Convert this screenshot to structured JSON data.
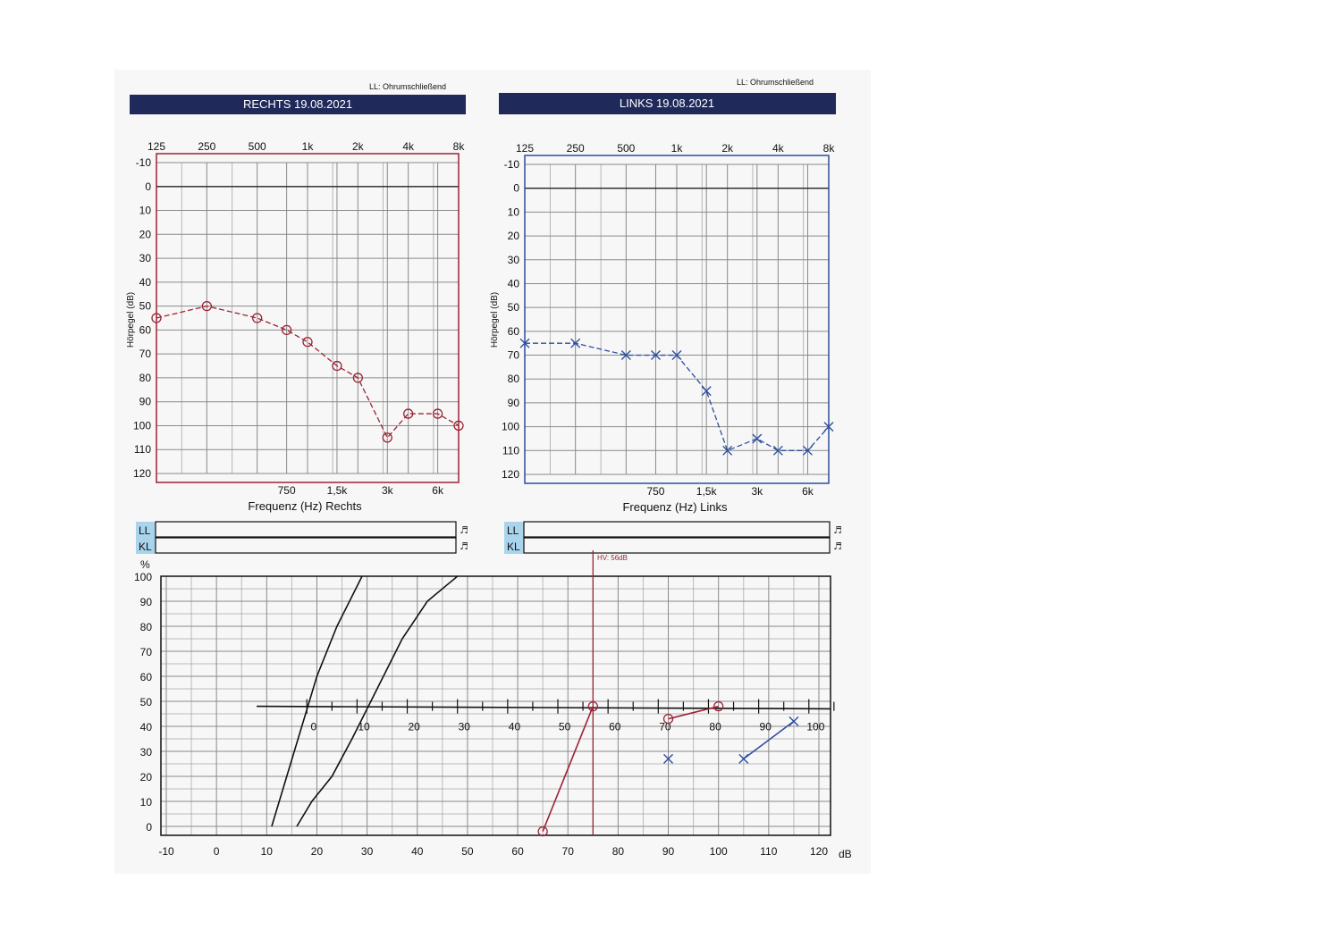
{
  "headers": {
    "right": {
      "ll_note": "LL: Ohrumschließend",
      "title": "RECHTS  19.08.2021",
      "freq_label": "Frequenz (Hz) Rechts"
    },
    "left": {
      "ll_note": "LL: Ohrumschließend",
      "title": "LINKS  19.08.2021",
      "freq_label": "Frequenz (Hz) Links"
    }
  },
  "axes": {
    "ylabel": "Hörpegel (dB)",
    "freq_top_ticks": [
      "125",
      "250",
      "500",
      "1k",
      "2k",
      "4k",
      "8k"
    ],
    "freq_bottom_ticks": [
      "750",
      "1,5k",
      "3k",
      "6k"
    ],
    "db_ticks": [
      "-10",
      "0",
      "10",
      "20",
      "30",
      "40",
      "50",
      "60",
      "70",
      "80",
      "90",
      "100",
      "110",
      "120"
    ]
  },
  "bars": {
    "ll": "LL",
    "kl": "KL"
  },
  "speech": {
    "ylabel": "%",
    "xunit": "dB",
    "hv_label": "HV: 56dB",
    "y_ticks": [
      "0",
      "10",
      "20",
      "30",
      "40",
      "50",
      "60",
      "70",
      "80",
      "90",
      "100"
    ],
    "x_ticks": [
      "-10",
      "0",
      "10",
      "20",
      "30",
      "40",
      "50",
      "60",
      "70",
      "80",
      "90",
      "100",
      "110",
      "120"
    ],
    "inner_ticks": [
      "0",
      "10",
      "20",
      "30",
      "40",
      "50",
      "60",
      "70",
      "80",
      "90",
      "100"
    ]
  },
  "colors": {
    "right": "#9b2335",
    "left": "#2c4f9e",
    "header_bg": "#1f2a5a",
    "bar_bg": "#a9d4ec"
  },
  "chart_data": [
    {
      "type": "line",
      "title": "RECHTS  19.08.2021",
      "xlabel": "Frequenz (Hz) Rechts",
      "ylabel": "Hörpegel (dB)",
      "ylim": [
        -10,
        120
      ],
      "x_scale": "log",
      "series": [
        {
          "marker": "circle",
          "points": [
            [
              125,
              55
            ],
            [
              250,
              50
            ],
            [
              500,
              55
            ],
            [
              750,
              60
            ],
            [
              1000,
              65
            ],
            [
              1500,
              75
            ],
            [
              2000,
              80
            ],
            [
              3000,
              105
            ],
            [
              4000,
              95
            ],
            [
              6000,
              95
            ],
            [
              8000,
              100
            ]
          ]
        }
      ]
    },
    {
      "type": "line",
      "title": "LINKS  19.08.2021",
      "xlabel": "Frequenz (Hz) Links",
      "ylabel": "Hörpegel (dB)",
      "ylim": [
        -10,
        120
      ],
      "x_scale": "log",
      "series": [
        {
          "marker": "cross",
          "points": [
            [
              125,
              65
            ],
            [
              250,
              65
            ],
            [
              500,
              70
            ],
            [
              750,
              70
            ],
            [
              1000,
              70
            ],
            [
              1500,
              85
            ],
            [
              2000,
              110
            ],
            [
              3000,
              105
            ],
            [
              4000,
              110
            ],
            [
              6000,
              110
            ],
            [
              8000,
              100
            ]
          ]
        }
      ]
    },
    {
      "type": "line",
      "title": "",
      "xlabel": "dB",
      "ylabel": "%",
      "xlim": [
        -10,
        120
      ],
      "ylim": [
        0,
        100
      ],
      "annotations": [
        {
          "type": "vline",
          "x": 75,
          "label": "HV: 56dB"
        }
      ],
      "series": [
        {
          "role": "reference",
          "points": [
            [
              11,
              0
            ],
            [
              14,
              20
            ],
            [
              17,
              40
            ],
            [
              20,
              60
            ],
            [
              24,
              80
            ],
            [
              29,
              100
            ]
          ]
        },
        {
          "role": "reference",
          "points": [
            [
              16,
              0
            ],
            [
              19,
              10
            ],
            [
              23,
              20
            ],
            [
              27,
              35
            ],
            [
              32,
              55
            ],
            [
              37,
              75
            ],
            [
              42,
              90
            ],
            [
              48,
              100
            ]
          ]
        },
        {
          "marker": "circle",
          "points": [
            [
              65,
              -2
            ],
            [
              75,
              48
            ]
          ]
        },
        {
          "marker": "circle",
          "points": [
            [
              90,
              43
            ],
            [
              100,
              48
            ]
          ]
        },
        {
          "marker": "cross",
          "points": [
            [
              90,
              27
            ]
          ]
        },
        {
          "marker": "cross",
          "points": [
            [
              105,
              27
            ],
            [
              115,
              42
            ]
          ]
        }
      ]
    }
  ]
}
